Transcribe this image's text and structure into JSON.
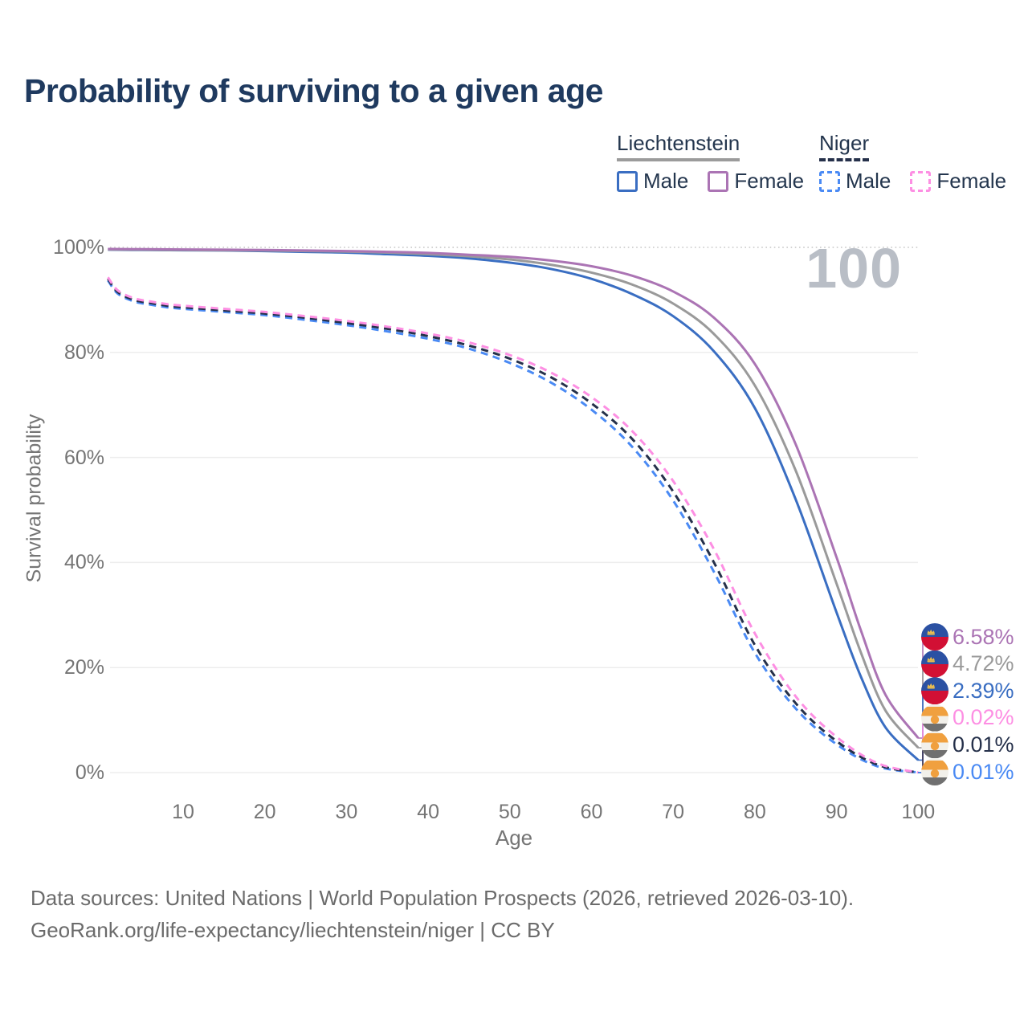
{
  "page": {
    "title": "Probability of surviving to a given age"
  },
  "watermark": {
    "text": "100"
  },
  "legend": {
    "groups": [
      {
        "name": "Liechtenstein",
        "line_style": "solid",
        "underline_color": "#9b9b9b",
        "items": [
          {
            "label": "Male",
            "color": "#3a6ec2",
            "box_style": "solid"
          },
          {
            "label": "Female",
            "color": "#ab74b4",
            "box_style": "solid"
          }
        ]
      },
      {
        "name": "Niger",
        "line_style": "dashed",
        "underline_color": "#25304a",
        "items": [
          {
            "label": "Male",
            "color": "#4a8af4",
            "box_style": "dashed"
          },
          {
            "label": "Female",
            "color": "#fd8fe3",
            "box_style": "dashed"
          }
        ]
      }
    ]
  },
  "axes": {
    "x": {
      "label": "Age",
      "ticks": [
        "10",
        "20",
        "30",
        "40",
        "50",
        "60",
        "70",
        "80",
        "90",
        "100"
      ]
    },
    "y": {
      "label": "Survival probability",
      "ticks": [
        "0%",
        "20%",
        "40%",
        "60%",
        "80%",
        "100%"
      ]
    }
  },
  "end_labels": [
    {
      "series": "liech_female",
      "value": "6.58%",
      "color": "#ab74b4",
      "flag": "liechtenstein"
    },
    {
      "series": "liech_combined",
      "value": "4.72%",
      "color": "#9a9a9a",
      "flag": "liechtenstein"
    },
    {
      "series": "liech_male",
      "value": "2.39%",
      "color": "#3a6ec2",
      "flag": "liechtenstein"
    },
    {
      "series": "niger_female",
      "value": "0.02%",
      "color": "#fd8fe3",
      "flag": "niger"
    },
    {
      "series": "niger_combined",
      "value": "0.01%",
      "color": "#25304a",
      "flag": "niger"
    },
    {
      "series": "niger_male",
      "value": "0.01%",
      "color": "#4a8af4",
      "flag": "niger"
    }
  ],
  "footer": {
    "line1": "Data sources: United Nations | World Population Prospects (2026, retrieved 2026-03-10).",
    "line2": "GeoRank.org/life-expectancy/liechtenstein/niger | CC BY"
  },
  "chart_data": {
    "type": "line",
    "title": "Probability of surviving to a given age",
    "xlabel": "Age",
    "ylabel": "Survival probability",
    "xlim": [
      0,
      100
    ],
    "ylim": [
      0,
      100
    ],
    "y_unit": "percent",
    "grid": "horizontal",
    "legend_position": "top-right",
    "age_counter_watermark": "100",
    "series": [
      {
        "id": "liech_male",
        "name": "Liechtenstein Male",
        "line": "solid",
        "color": "#3a6ec2",
        "final_value_pct": 2.39,
        "points": [
          [
            0.8,
            99.55
          ],
          [
            5,
            99.5
          ],
          [
            10,
            99.45
          ],
          [
            15,
            99.4
          ],
          [
            20,
            99.3
          ],
          [
            25,
            99.15
          ],
          [
            30,
            99.0
          ],
          [
            35,
            98.7
          ],
          [
            40,
            98.4
          ],
          [
            45,
            97.9
          ],
          [
            50,
            97.1
          ],
          [
            55,
            95.9
          ],
          [
            60,
            94.0
          ],
          [
            65,
            91.1
          ],
          [
            70,
            86.9
          ],
          [
            75,
            80.2
          ],
          [
            80,
            69.4
          ],
          [
            85,
            52.0
          ],
          [
            90,
            30.5
          ],
          [
            93,
            18.2
          ],
          [
            96,
            8.6
          ],
          [
            100,
            2.39
          ]
        ]
      },
      {
        "id": "liech_combined",
        "name": "Liechtenstein combined (gray, unlabeled in legend)",
        "line": "solid",
        "color": "#9a9a9a",
        "final_value_pct": 4.72,
        "points": [
          [
            0.8,
            99.6
          ],
          [
            5,
            99.55
          ],
          [
            10,
            99.5
          ],
          [
            15,
            99.45
          ],
          [
            20,
            99.4
          ],
          [
            25,
            99.3
          ],
          [
            30,
            99.2
          ],
          [
            35,
            99.0
          ],
          [
            40,
            98.7
          ],
          [
            45,
            98.3
          ],
          [
            50,
            97.7
          ],
          [
            55,
            96.7
          ],
          [
            60,
            95.2
          ],
          [
            65,
            92.9
          ],
          [
            70,
            89.3
          ],
          [
            75,
            83.5
          ],
          [
            80,
            73.7
          ],
          [
            85,
            57.5
          ],
          [
            90,
            36.0
          ],
          [
            93,
            22.8
          ],
          [
            96,
            11.8
          ],
          [
            100,
            4.72
          ]
        ]
      },
      {
        "id": "liech_female",
        "name": "Liechtenstein Female",
        "line": "solid",
        "color": "#ab74b4",
        "final_value_pct": 6.58,
        "points": [
          [
            0.8,
            99.7
          ],
          [
            5,
            99.65
          ],
          [
            10,
            99.6
          ],
          [
            15,
            99.55
          ],
          [
            20,
            99.5
          ],
          [
            25,
            99.4
          ],
          [
            30,
            99.3
          ],
          [
            35,
            99.15
          ],
          [
            40,
            98.95
          ],
          [
            45,
            98.6
          ],
          [
            50,
            98.2
          ],
          [
            55,
            97.5
          ],
          [
            60,
            96.4
          ],
          [
            65,
            94.6
          ],
          [
            70,
            91.6
          ],
          [
            75,
            86.6
          ],
          [
            80,
            77.8
          ],
          [
            85,
            62.5
          ],
          [
            90,
            41.0
          ],
          [
            93,
            27.0
          ],
          [
            96,
            14.8
          ],
          [
            100,
            6.58
          ]
        ]
      },
      {
        "id": "niger_male",
        "name": "Niger Male",
        "line": "dashed",
        "color": "#4a8af4",
        "final_value_pct": 0.01,
        "points": [
          [
            0.8,
            93.7
          ],
          [
            2,
            91.2
          ],
          [
            4,
            89.7
          ],
          [
            6,
            89.1
          ],
          [
            8,
            88.6
          ],
          [
            10,
            88.3
          ],
          [
            15,
            87.7
          ],
          [
            20,
            87.1
          ],
          [
            25,
            86.2
          ],
          [
            30,
            85.2
          ],
          [
            35,
            84.0
          ],
          [
            40,
            82.6
          ],
          [
            45,
            80.7
          ],
          [
            50,
            78.0
          ],
          [
            55,
            74.3
          ],
          [
            60,
            69.1
          ],
          [
            65,
            62.0
          ],
          [
            70,
            51.8
          ],
          [
            75,
            38.2
          ],
          [
            80,
            22.8
          ],
          [
            85,
            12.2
          ],
          [
            90,
            5.4
          ],
          [
            95,
            1.2
          ],
          [
            100,
            0.01
          ]
        ]
      },
      {
        "id": "niger_combined",
        "name": "Niger combined (dark dashed, unlabeled in legend)",
        "line": "dashed",
        "color": "#25304a",
        "final_value_pct": 0.01,
        "points": [
          [
            0.8,
            94.0
          ],
          [
            2,
            91.5
          ],
          [
            4,
            90.0
          ],
          [
            6,
            89.4
          ],
          [
            8,
            88.9
          ],
          [
            10,
            88.6
          ],
          [
            15,
            88.0
          ],
          [
            20,
            87.4
          ],
          [
            25,
            86.6
          ],
          [
            30,
            85.6
          ],
          [
            35,
            84.5
          ],
          [
            40,
            83.1
          ],
          [
            45,
            81.3
          ],
          [
            50,
            78.8
          ],
          [
            55,
            75.3
          ],
          [
            60,
            70.3
          ],
          [
            65,
            63.5
          ],
          [
            70,
            53.5
          ],
          [
            75,
            40.0
          ],
          [
            80,
            24.3
          ],
          [
            85,
            13.2
          ],
          [
            90,
            6.0
          ],
          [
            95,
            1.5
          ],
          [
            100,
            0.01
          ]
        ]
      },
      {
        "id": "niger_female",
        "name": "Niger Female",
        "line": "dashed",
        "color": "#fd8fe3",
        "final_value_pct": 0.02,
        "points": [
          [
            0.8,
            94.3
          ],
          [
            2,
            91.8
          ],
          [
            4,
            90.3
          ],
          [
            6,
            89.7
          ],
          [
            8,
            89.2
          ],
          [
            10,
            88.9
          ],
          [
            15,
            88.3
          ],
          [
            20,
            87.7
          ],
          [
            25,
            86.9
          ],
          [
            30,
            86.0
          ],
          [
            35,
            84.9
          ],
          [
            40,
            83.6
          ],
          [
            45,
            81.9
          ],
          [
            50,
            79.5
          ],
          [
            55,
            76.2
          ],
          [
            60,
            71.5
          ],
          [
            65,
            65.0
          ],
          [
            70,
            55.5
          ],
          [
            75,
            42.5
          ],
          [
            80,
            26.5
          ],
          [
            85,
            14.5
          ],
          [
            90,
            6.8
          ],
          [
            95,
            1.8
          ],
          [
            100,
            0.02
          ]
        ]
      }
    ]
  }
}
